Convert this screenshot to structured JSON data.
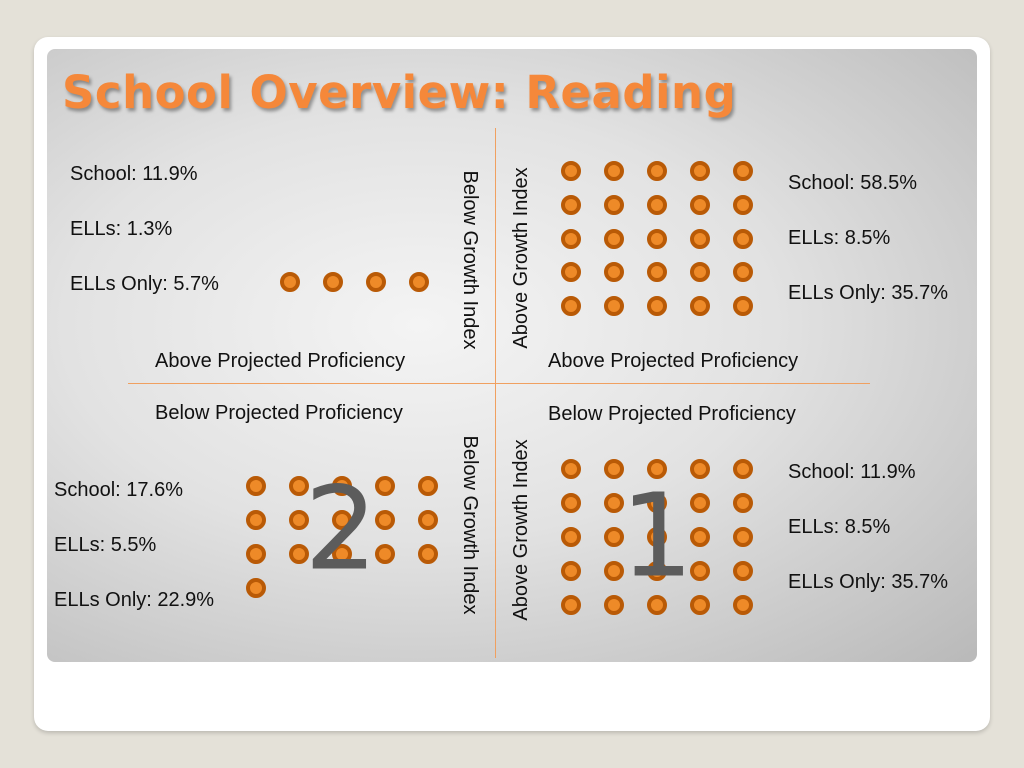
{
  "title": "School Overview: Reading",
  "colors": {
    "title": "#f5883a",
    "dot_fill": "#ee8a28",
    "dot_ring": "#b95a06",
    "axis": "#f0a060"
  },
  "quadrants": {
    "top_left": {
      "stats": [
        "School: 11.9%",
        "ELLs: 1.3%",
        "ELLs Only: 5.7%"
      ],
      "label_horizontal": "Above Projected Proficiency",
      "label_vertical": "Below Growth Index",
      "dot_count": 4
    },
    "top_right": {
      "stats": [
        "School: 58.5%",
        "ELLs: 8.5%",
        "ELLs Only: 35.7%"
      ],
      "label_horizontal": "Above Projected Proficiency",
      "label_vertical": "Above Growth Index",
      "dot_count": 25
    },
    "bottom_left": {
      "stats": [
        "School: 17.6%",
        "ELLs: 5.5%",
        "ELLs Only: 22.9%"
      ],
      "label_horizontal": "Below Projected Proficiency",
      "label_vertical": "Below Growth Index",
      "dot_count": 16,
      "number": "2"
    },
    "bottom_right": {
      "stats": [
        "School: 11.9%",
        "ELLs: 8.5%",
        "ELLs Only: 35.7%"
      ],
      "label_horizontal": "Below Projected Proficiency",
      "label_vertical": "Above Growth Index",
      "dot_count": 25,
      "number": "1"
    }
  }
}
